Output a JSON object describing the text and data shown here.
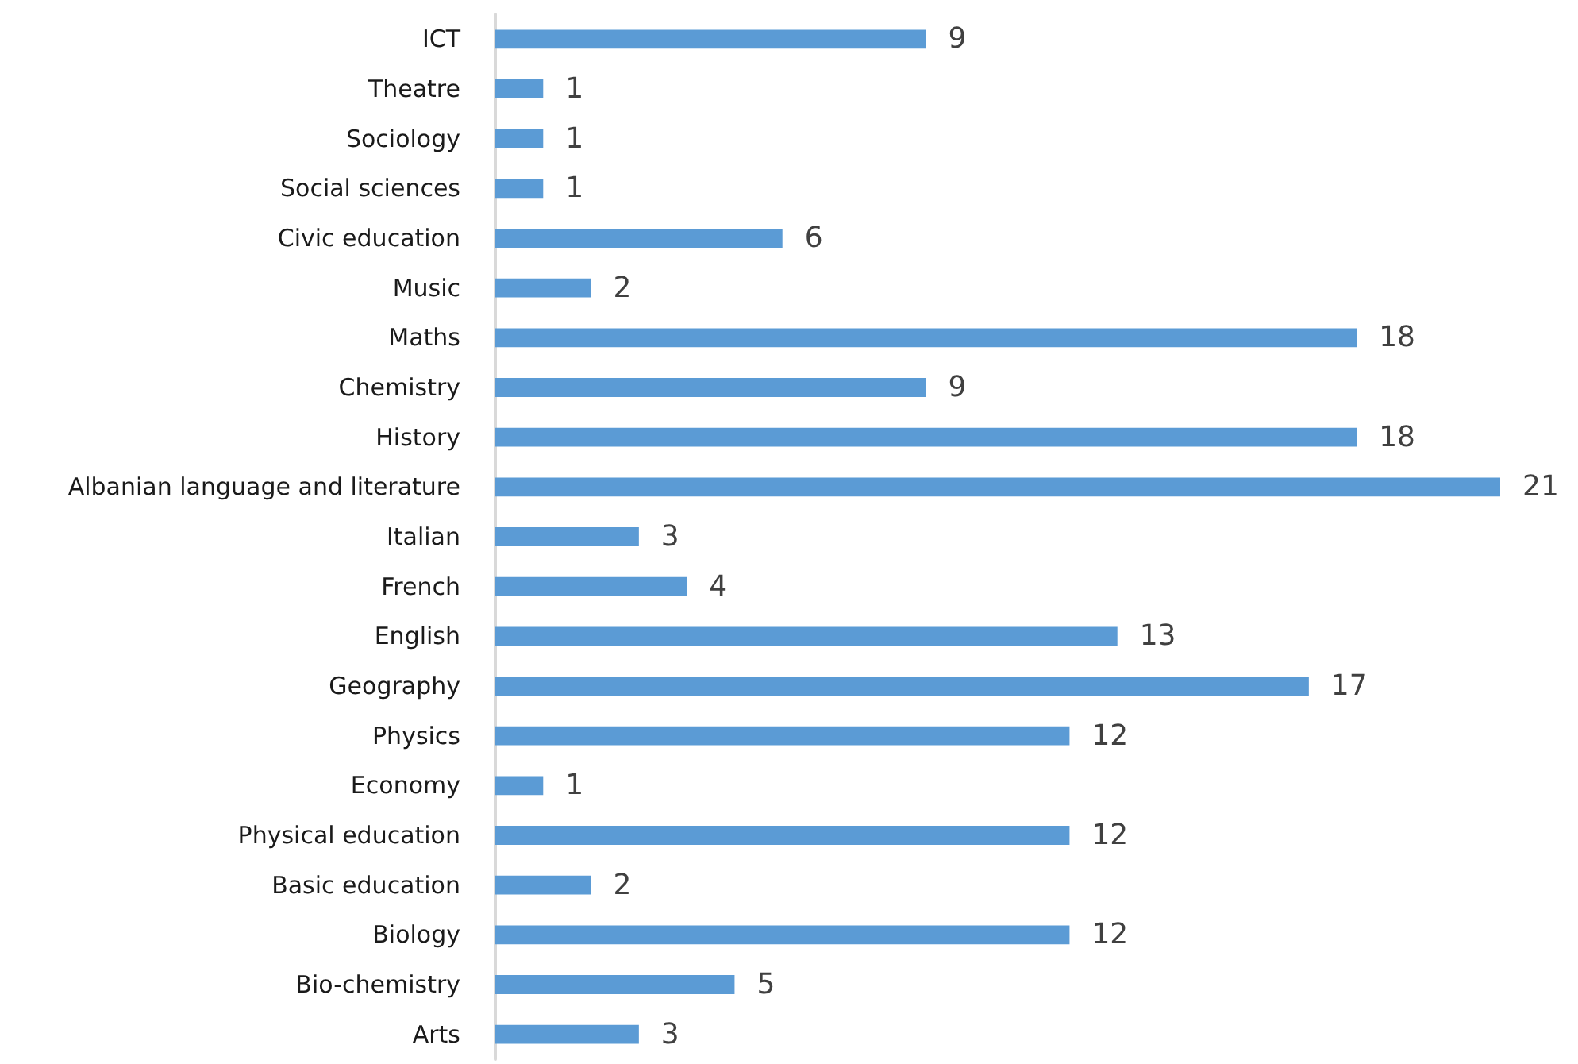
{
  "chart_data": {
    "type": "bar",
    "orientation": "horizontal",
    "categories": [
      "ICT",
      "Theatre",
      "Sociology",
      "Social sciences",
      "Civic education",
      "Music",
      "Maths",
      "Chemistry",
      "History",
      "Albanian language and literature",
      "Italian",
      "French",
      "English",
      "Geography",
      "Physics",
      "Economy",
      "Physical education",
      "Basic education",
      "Biology",
      "Bio-chemistry",
      "Arts"
    ],
    "values": [
      9,
      1,
      1,
      1,
      6,
      2,
      18,
      9,
      18,
      21,
      3,
      4,
      13,
      17,
      12,
      1,
      12,
      2,
      12,
      5,
      3
    ],
    "color": "#5b9bd5",
    "data_labels": true,
    "tick_labels": "y"
  }
}
